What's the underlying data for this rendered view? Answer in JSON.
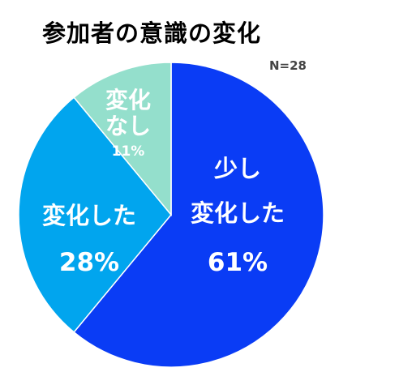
{
  "chart_data": {
    "type": "pie",
    "title": "参加者の意識の変化",
    "note": "N=28",
    "start_position": "top, clockwise",
    "slices": [
      {
        "label_lines": [
          "少し",
          "変化した"
        ],
        "percent_label": "61%",
        "value": 61,
        "color": "#0a3cf5"
      },
      {
        "label_lines": [
          "変化した"
        ],
        "percent_label": "28%",
        "value": 28,
        "color": "#01a5ee"
      },
      {
        "label_lines": [
          "変化",
          "なし"
        ],
        "percent_label": "11%",
        "value": 11,
        "color": "#94dfcc"
      }
    ]
  }
}
